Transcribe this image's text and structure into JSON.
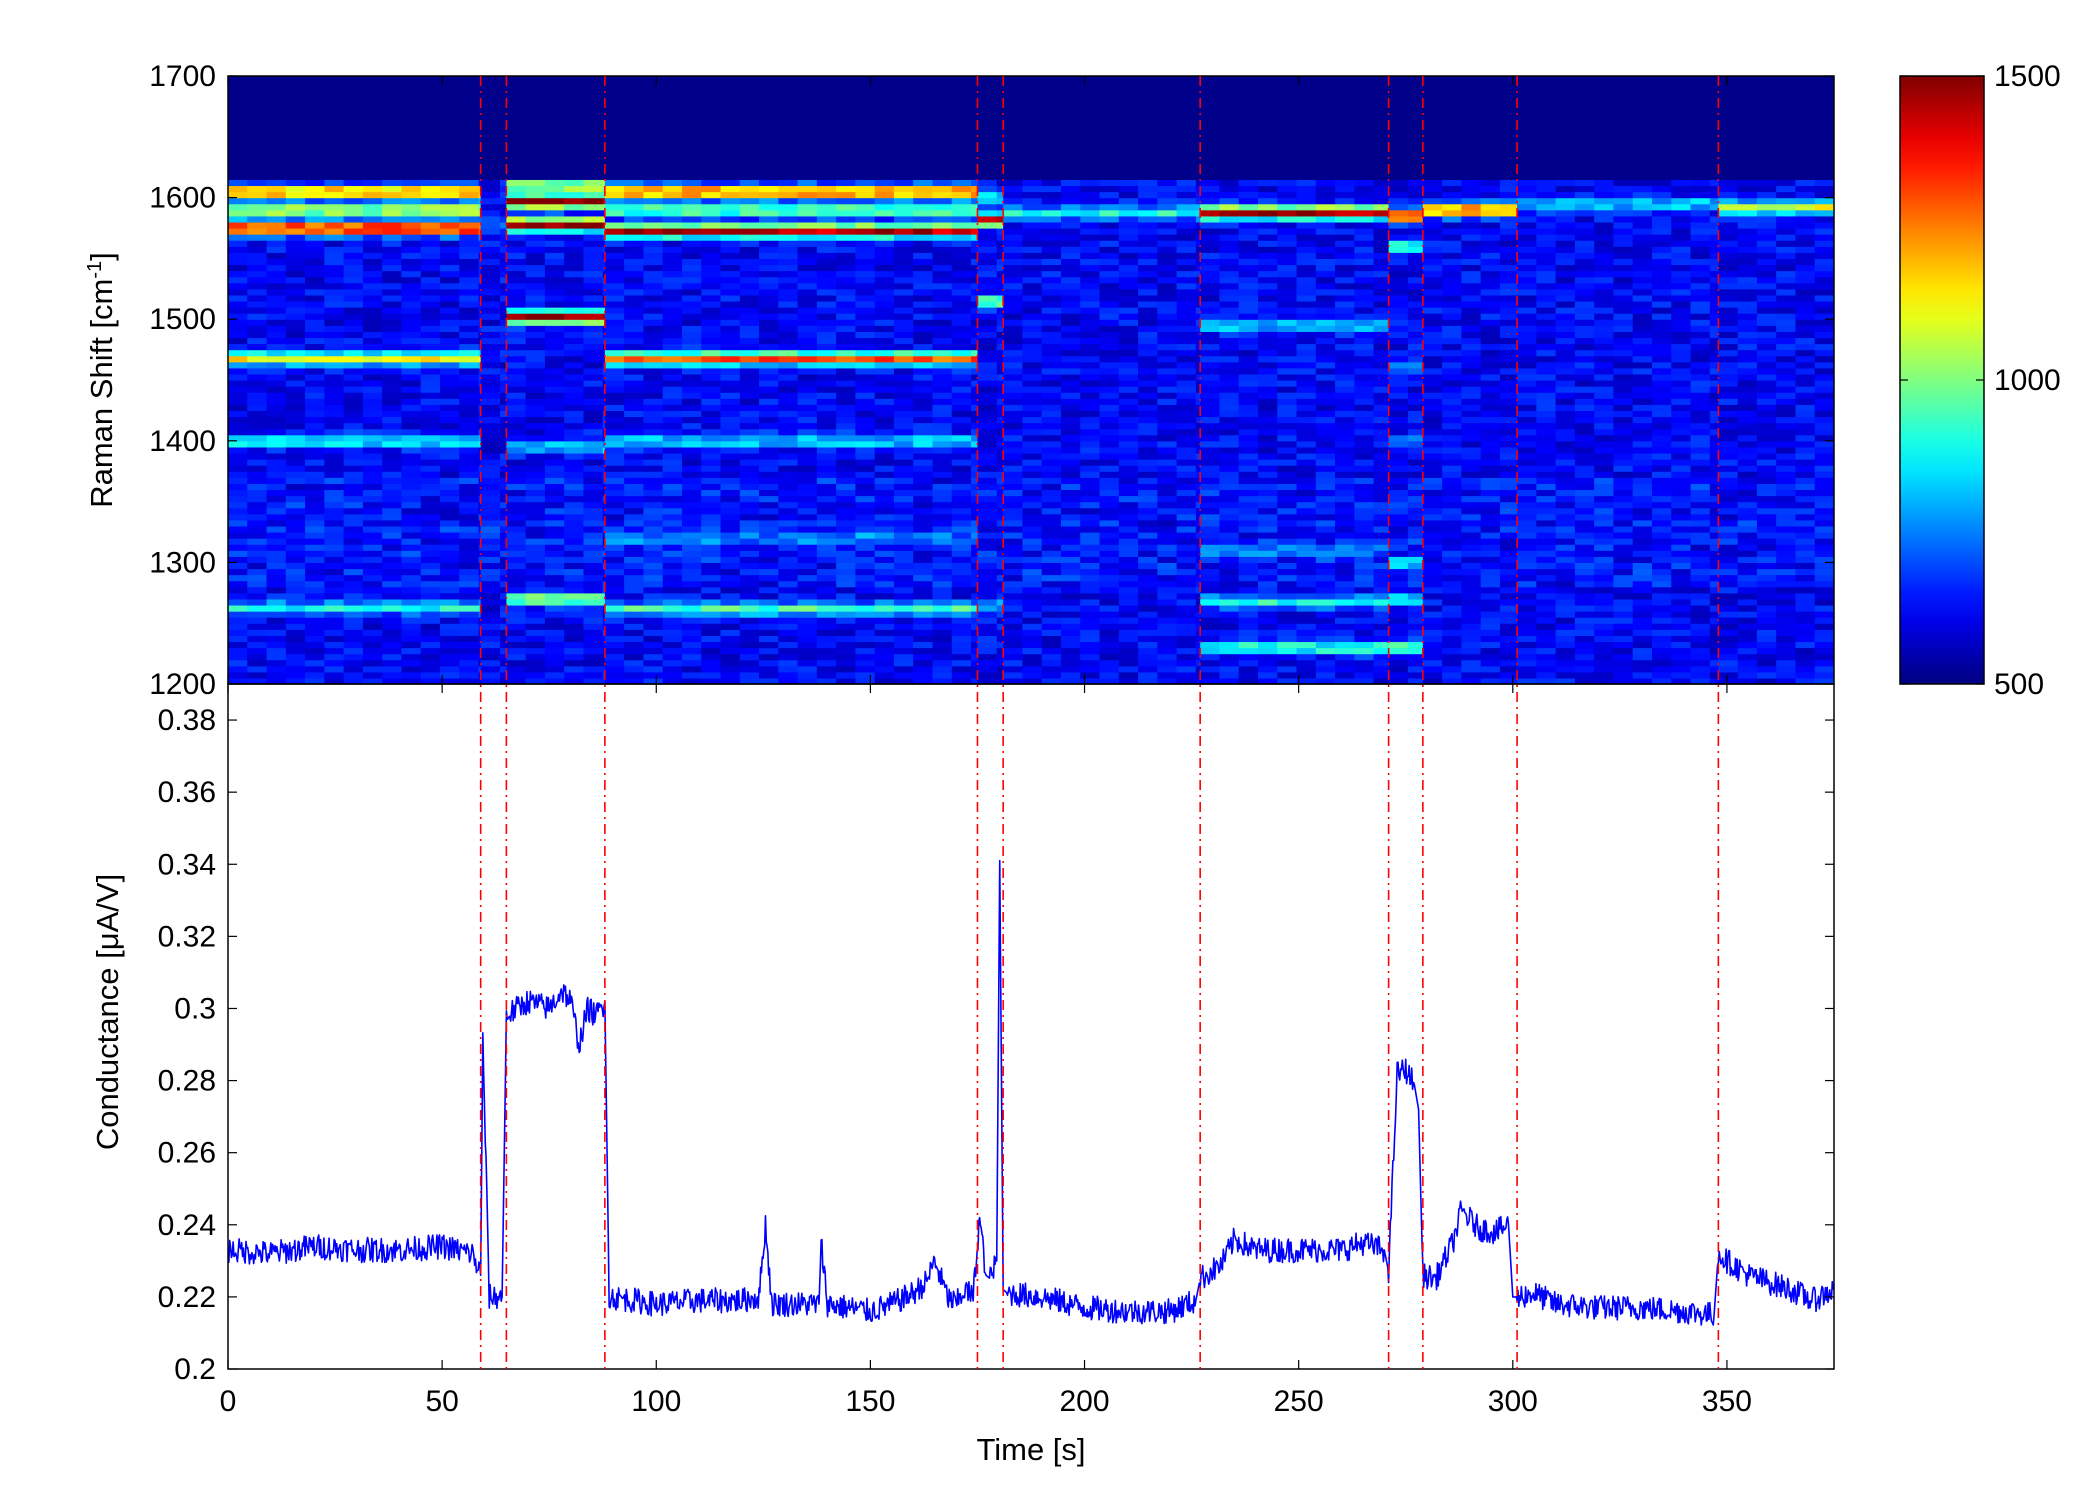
{
  "chart_data": [
    {
      "type": "heatmap",
      "title": "",
      "xlabel": "",
      "ylabel": "Raman Shift [cm",
      "ylabel_sup": "-1",
      "ylabel_end": "]",
      "xlim": [
        0,
        375
      ],
      "ylim": [
        1200,
        1700
      ],
      "yticks": [
        "1200",
        "1300",
        "1400",
        "1500",
        "1600",
        "1700"
      ],
      "colormap": "jet",
      "clim": [
        500,
        1500
      ],
      "colorbar_ticks": [
        "500",
        "1000",
        "1500"
      ],
      "event_lines_x": [
        59,
        65,
        88,
        175,
        181,
        227,
        271,
        279,
        301,
        348
      ],
      "segments": [
        {
          "x": [
            0,
            59
          ],
          "bands": [
            [
              1263,
              900
            ],
            [
              1400,
              900
            ],
            [
              1468,
              1150
            ],
            [
              1575,
              1480
            ],
            [
              1590,
              1100
            ],
            [
              1605,
              1300
            ]
          ]
        },
        {
          "x": [
            59,
            65
          ],
          "bands": [
            [
              1580,
              750
            ]
          ]
        },
        {
          "x": [
            65,
            88
          ],
          "bands": [
            [
              1270,
              1050
            ],
            [
              1395,
              850
            ],
            [
              1502,
              1500
            ],
            [
              1578,
              1500
            ],
            [
              1597,
              1500
            ],
            [
              1610,
              1100
            ]
          ]
        },
        {
          "x": [
            88,
            175
          ],
          "bands": [
            [
              1262,
              950
            ],
            [
              1320,
              750
            ],
            [
              1400,
              850
            ],
            [
              1468,
              1300
            ],
            [
              1573,
              1450
            ],
            [
              1590,
              1000
            ],
            [
              1605,
              1350
            ]
          ]
        },
        {
          "x": [
            175,
            181
          ],
          "bands": [
            [
              1265,
              800
            ],
            [
              1515,
              1050
            ],
            [
              1582,
              1400
            ],
            [
              1600,
              900
            ]
          ]
        },
        {
          "x": [
            181,
            227
          ],
          "bands": [
            [
              1588,
              900
            ]
          ]
        },
        {
          "x": [
            227,
            271
          ],
          "bands": [
            [
              1230,
              950
            ],
            [
              1268,
              900
            ],
            [
              1310,
              750
            ],
            [
              1495,
              850
            ],
            [
              1588,
              1480
            ]
          ]
        },
        {
          "x": [
            271,
            279
          ],
          "bands": [
            [
              1230,
              1000
            ],
            [
              1270,
              900
            ],
            [
              1300,
              850
            ],
            [
              1400,
              800
            ],
            [
              1460,
              800
            ],
            [
              1560,
              950
            ],
            [
              1585,
              1500
            ]
          ]
        },
        {
          "x": [
            279,
            301
          ],
          "bands": [
            [
              1590,
              1350
            ]
          ]
        },
        {
          "x": [
            301,
            348
          ],
          "bands": [
            [
              1595,
              850
            ]
          ]
        },
        {
          "x": [
            348,
            375
          ],
          "bands": [
            [
              1592,
              1100
            ]
          ]
        }
      ]
    },
    {
      "type": "line",
      "title": "",
      "xlabel": "Time [s]",
      "ylabel": "Conductance [μA/V]",
      "xlim": [
        0,
        375
      ],
      "ylim": [
        0.2,
        0.39
      ],
      "xticks": [
        "0",
        "50",
        "100",
        "150",
        "200",
        "250",
        "300",
        "350"
      ],
      "yticks": [
        "0.2",
        "0.22",
        "0.24",
        "0.26",
        "0.28",
        "0.3",
        "0.32",
        "0.34",
        "0.36",
        "0.38"
      ],
      "series": [
        {
          "color": "#0000ff",
          "x": [
            0,
            10,
            20,
            30,
            40,
            50,
            57,
            59,
            59.5,
            61,
            64,
            65,
            70,
            75,
            78,
            80,
            82,
            84,
            86,
            88,
            89,
            95,
            100,
            110,
            120,
            124,
            125.5,
            127,
            135,
            138,
            138.5,
            140,
            150,
            155,
            160,
            163,
            165,
            168,
            170,
            172,
            174,
            175.5,
            177,
            178,
            179.5,
            180.2,
            181,
            182,
            190,
            200,
            210,
            220,
            226,
            227,
            232,
            235,
            240,
            250,
            260,
            265,
            270,
            271,
            273,
            275,
            277,
            278,
            279,
            282,
            286,
            288,
            292,
            296,
            299,
            300,
            301,
            305,
            310,
            320,
            330,
            340,
            347,
            348,
            350,
            355,
            360,
            365,
            370,
            375
          ],
          "y": [
            0.233,
            0.232,
            0.234,
            0.233,
            0.233,
            0.234,
            0.232,
            0.226,
            0.292,
            0.22,
            0.22,
            0.298,
            0.302,
            0.3,
            0.305,
            0.302,
            0.29,
            0.3,
            0.298,
            0.302,
            0.22,
            0.219,
            0.218,
            0.219,
            0.219,
            0.22,
            0.24,
            0.218,
            0.218,
            0.218,
            0.235,
            0.218,
            0.216,
            0.218,
            0.221,
            0.224,
            0.23,
            0.22,
            0.218,
            0.222,
            0.22,
            0.242,
            0.226,
            0.225,
            0.23,
            0.341,
            0.222,
            0.221,
            0.22,
            0.217,
            0.216,
            0.216,
            0.219,
            0.225,
            0.229,
            0.236,
            0.233,
            0.233,
            0.233,
            0.235,
            0.233,
            0.227,
            0.282,
            0.283,
            0.279,
            0.272,
            0.226,
            0.225,
            0.235,
            0.244,
            0.239,
            0.238,
            0.24,
            0.22,
            0.22,
            0.221,
            0.218,
            0.217,
            0.217,
            0.216,
            0.215,
            0.232,
            0.23,
            0.226,
            0.224,
            0.222,
            0.219,
            0.222
          ]
        }
      ]
    }
  ]
}
